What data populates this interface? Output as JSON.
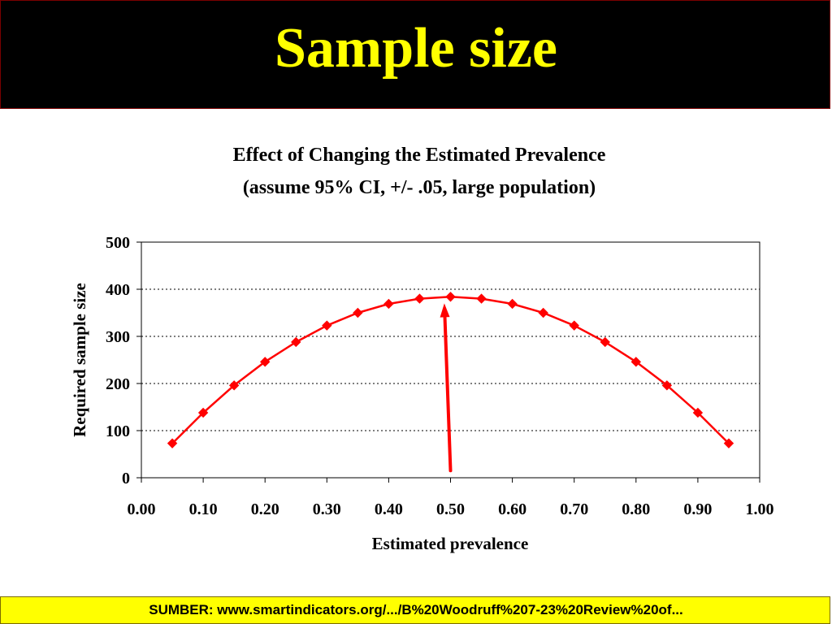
{
  "slide": {
    "title": "Sample size",
    "footer": "SUMBER: www.smartindicators.org/.../B%20Woodruff%207-23%20Review%20of..."
  },
  "colors": {
    "title_background": "#000000",
    "title_text": "#ffff00",
    "footer_background": "#ffff00",
    "series": "#ff0000",
    "arrow": "#ff0000",
    "gridline": "#000000"
  },
  "chart_data": {
    "type": "line",
    "title": [
      "Effect of Changing the Estimated Prevalence",
      "(assume 95%  CI, +/- .05, large population)"
    ],
    "xlabel": "Estimated prevalence",
    "ylabel": "Required sample size",
    "xlim": [
      0,
      1
    ],
    "ylim": [
      0,
      500
    ],
    "x_ticks": [
      "0.00",
      "0.10",
      "0.20",
      "0.30",
      "0.40",
      "0.50",
      "0.60",
      "0.70",
      "0.80",
      "0.90",
      "1.00"
    ],
    "y_ticks": [
      "0",
      "100",
      "200",
      "300",
      "400",
      "500"
    ],
    "grid": "horizontal dotted",
    "legend": "none",
    "marker": "diamond",
    "series": [
      {
        "x": [
          0.05,
          0.1,
          0.15,
          0.2,
          0.25,
          0.3,
          0.35,
          0.4,
          0.45,
          0.5,
          0.55,
          0.6,
          0.65,
          0.7,
          0.75,
          0.8,
          0.85,
          0.9,
          0.95
        ],
        "y": [
          73,
          138,
          196,
          246,
          288,
          323,
          350,
          369,
          380,
          384,
          380,
          369,
          350,
          323,
          288,
          246,
          196,
          138,
          73
        ]
      }
    ],
    "annotations": [
      {
        "type": "arrow",
        "from": {
          "x": 0.5,
          "y": 15
        },
        "to": {
          "x": 0.49,
          "y": 370
        }
      }
    ]
  }
}
